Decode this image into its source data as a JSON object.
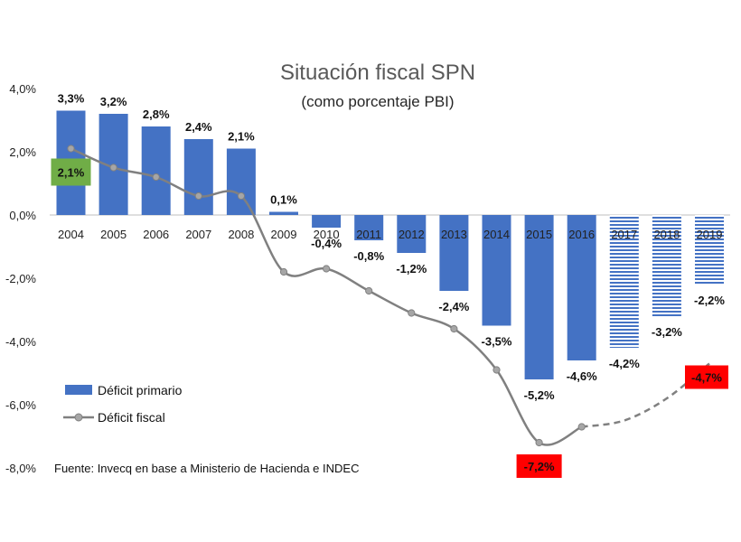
{
  "chart_data": {
    "type": "bar",
    "title": "Situación fiscal SPN",
    "subtitle": "(como porcentaje PBI)",
    "categories": [
      "2004",
      "2005",
      "2006",
      "2007",
      "2008",
      "2009",
      "2010",
      "2011",
      "2012",
      "2013",
      "2014",
      "2015",
      "2016",
      "2017",
      "2018",
      "2019"
    ],
    "ylim": [
      -8,
      4
    ],
    "yticks": [
      "4,0%",
      "2,0%",
      "0,0%",
      "-2,0%",
      "-4,0%",
      "-6,0%",
      "-8,0%"
    ],
    "ytick_values": [
      4,
      2,
      0,
      -2,
      -4,
      -6,
      -8
    ],
    "projected_from": "2017",
    "series": [
      {
        "name": "Déficit primario",
        "kind": "bar",
        "color": "#4472C4",
        "values": [
          3.3,
          3.2,
          2.8,
          2.4,
          2.1,
          0.1,
          -0.4,
          -0.8,
          -1.2,
          -2.4,
          -3.5,
          -5.2,
          -4.6,
          -4.2,
          -3.2,
          -2.2
        ],
        "labels": [
          "3,3%",
          "3,2%",
          "2,8%",
          "2,4%",
          "2,1%",
          "0,1%",
          "-0,4%",
          "-0,8%",
          "-1,2%",
          "-2,4%",
          "-3,5%",
          "-5,2%",
          "-4,6%",
          "-4,2%",
          "-3,2%",
          "-2,2%"
        ]
      },
      {
        "name": "Déficit fiscal",
        "kind": "line",
        "color": "#808080",
        "values": [
          2.1,
          1.5,
          1.2,
          0.6,
          0.6,
          -1.8,
          -1.7,
          -2.4,
          -3.1,
          -3.6,
          -4.9,
          -7.2,
          -6.7,
          -6.5,
          -5.8,
          -4.7
        ],
        "dashed_from": "2016"
      }
    ],
    "callouts": [
      {
        "category": "2004",
        "text": "2,1%",
        "color": "#70AD47"
      },
      {
        "category": "2015",
        "text": "-7,2%",
        "color": "#FF0000"
      },
      {
        "category": "2019",
        "text": "-4,7%",
        "color": "#FF0000"
      }
    ],
    "legend_position": "bottom-left",
    "grid": false
  },
  "source": "Fuente: Invecq en base a Ministerio de Hacienda e INDEC"
}
